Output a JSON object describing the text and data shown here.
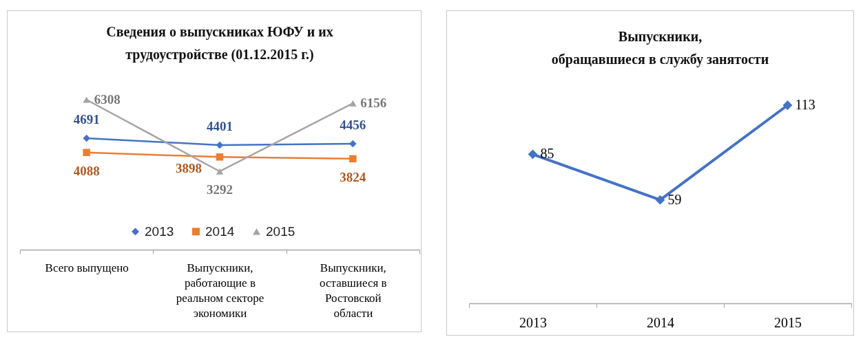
{
  "chart_data": [
    {
      "type": "line",
      "title": "Сведения о выпускниках ЮФУ и их трудоустройстве (01.12.2015 г.)",
      "categories": [
        "Всего выпущено",
        "Выпускники, работающие в реальном секторе экономики",
        "Выпускники, оставшиеся в Ростовской области"
      ],
      "series": [
        {
          "name": "2013",
          "color": "#4472c4",
          "marker": "diamond",
          "values": [
            4691,
            4401,
            4456
          ]
        },
        {
          "name": "2014",
          "color": "#ed7d31",
          "marker": "square",
          "values": [
            4088,
            3898,
            3824
          ]
        },
        {
          "name": "2015",
          "color": "#a5a5a5",
          "marker": "triangle",
          "values": [
            6308,
            3292,
            6156
          ]
        }
      ],
      "data_labels": true,
      "legend": "bottom",
      "tick_labels": "x"
    },
    {
      "type": "line",
      "title": "Выпускники, обращавшиеся в службу занятости",
      "categories": [
        "2013",
        "2014",
        "2015"
      ],
      "series": [
        {
          "color": "#4472c4",
          "values": [
            85,
            59,
            113
          ]
        }
      ],
      "marker": "diamond",
      "data_labels": true,
      "tick_labels": "x"
    }
  ]
}
